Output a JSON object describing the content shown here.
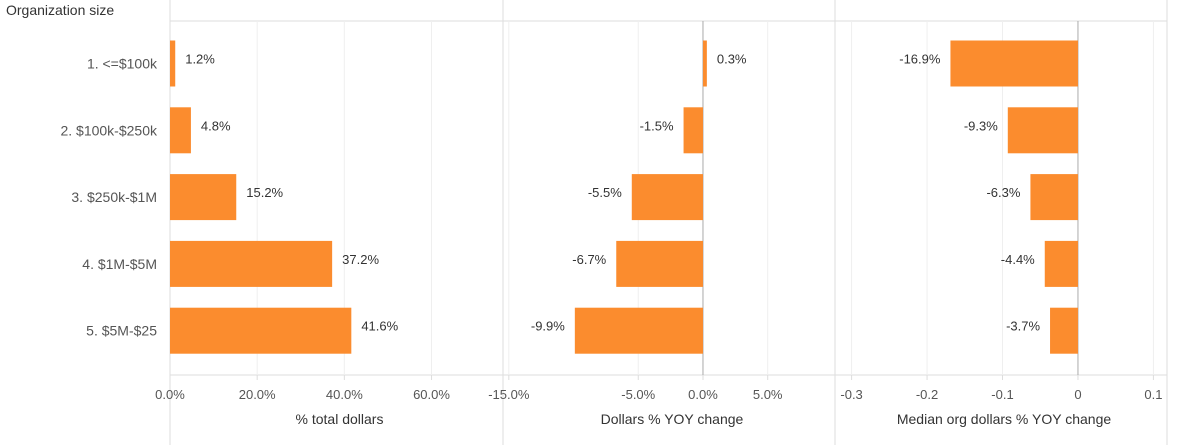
{
  "header": "Organization size",
  "colors": {
    "bar": "#fb8c2e",
    "grid": "#efefef",
    "frame": "#dddddd",
    "zero": "#aaaaaa"
  },
  "chart_data": {
    "type": "bar",
    "orientation": "horizontal",
    "categories": [
      "1. <=$100k",
      "2. $100k-$250k",
      "3. $250k-$1M",
      "4. $1M-$5M",
      "5. $5M-$25"
    ],
    "panels": [
      {
        "xlabel": "% total dollars",
        "values": [
          1.2,
          4.8,
          15.2,
          37.2,
          41.6
        ],
        "labels": [
          "1.2%",
          "4.8%",
          "15.2%",
          "37.2%",
          "41.6%"
        ],
        "xlim": [
          0,
          76.4
        ],
        "ticks": [
          0,
          20,
          40,
          60
        ],
        "tick_labels": [
          "0.0%",
          "20.0%",
          "40.0%",
          "60.0%"
        ]
      },
      {
        "xlabel": "Dollars % YOY change",
        "values": [
          0.3,
          -1.5,
          -5.5,
          -6.7,
          -9.9
        ],
        "labels": [
          "0.3%",
          "-1.5%",
          "-5.5%",
          "-6.7%",
          "-9.9%"
        ],
        "xlim": [
          -15.45,
          10.2
        ],
        "ticks": [
          -15,
          -5,
          0,
          5
        ],
        "tick_labels": [
          "-15.0%",
          "-5.0%",
          "0.0%",
          "5.0%"
        ]
      },
      {
        "xlabel": "Median org dollars % YOY change",
        "values": [
          -0.169,
          -0.093,
          -0.063,
          -0.044,
          -0.037
        ],
        "labels": [
          "-16.9%",
          "-9.3%",
          "-6.3%",
          "-4.4%",
          "-3.7%"
        ],
        "xlim": [
          -0.322,
          0.118
        ],
        "ticks": [
          -0.3,
          -0.2,
          -0.1,
          0,
          0.1
        ],
        "tick_labels": [
          "-0.3",
          "-0.2",
          "-0.1",
          "0",
          "0.1"
        ]
      }
    ]
  }
}
